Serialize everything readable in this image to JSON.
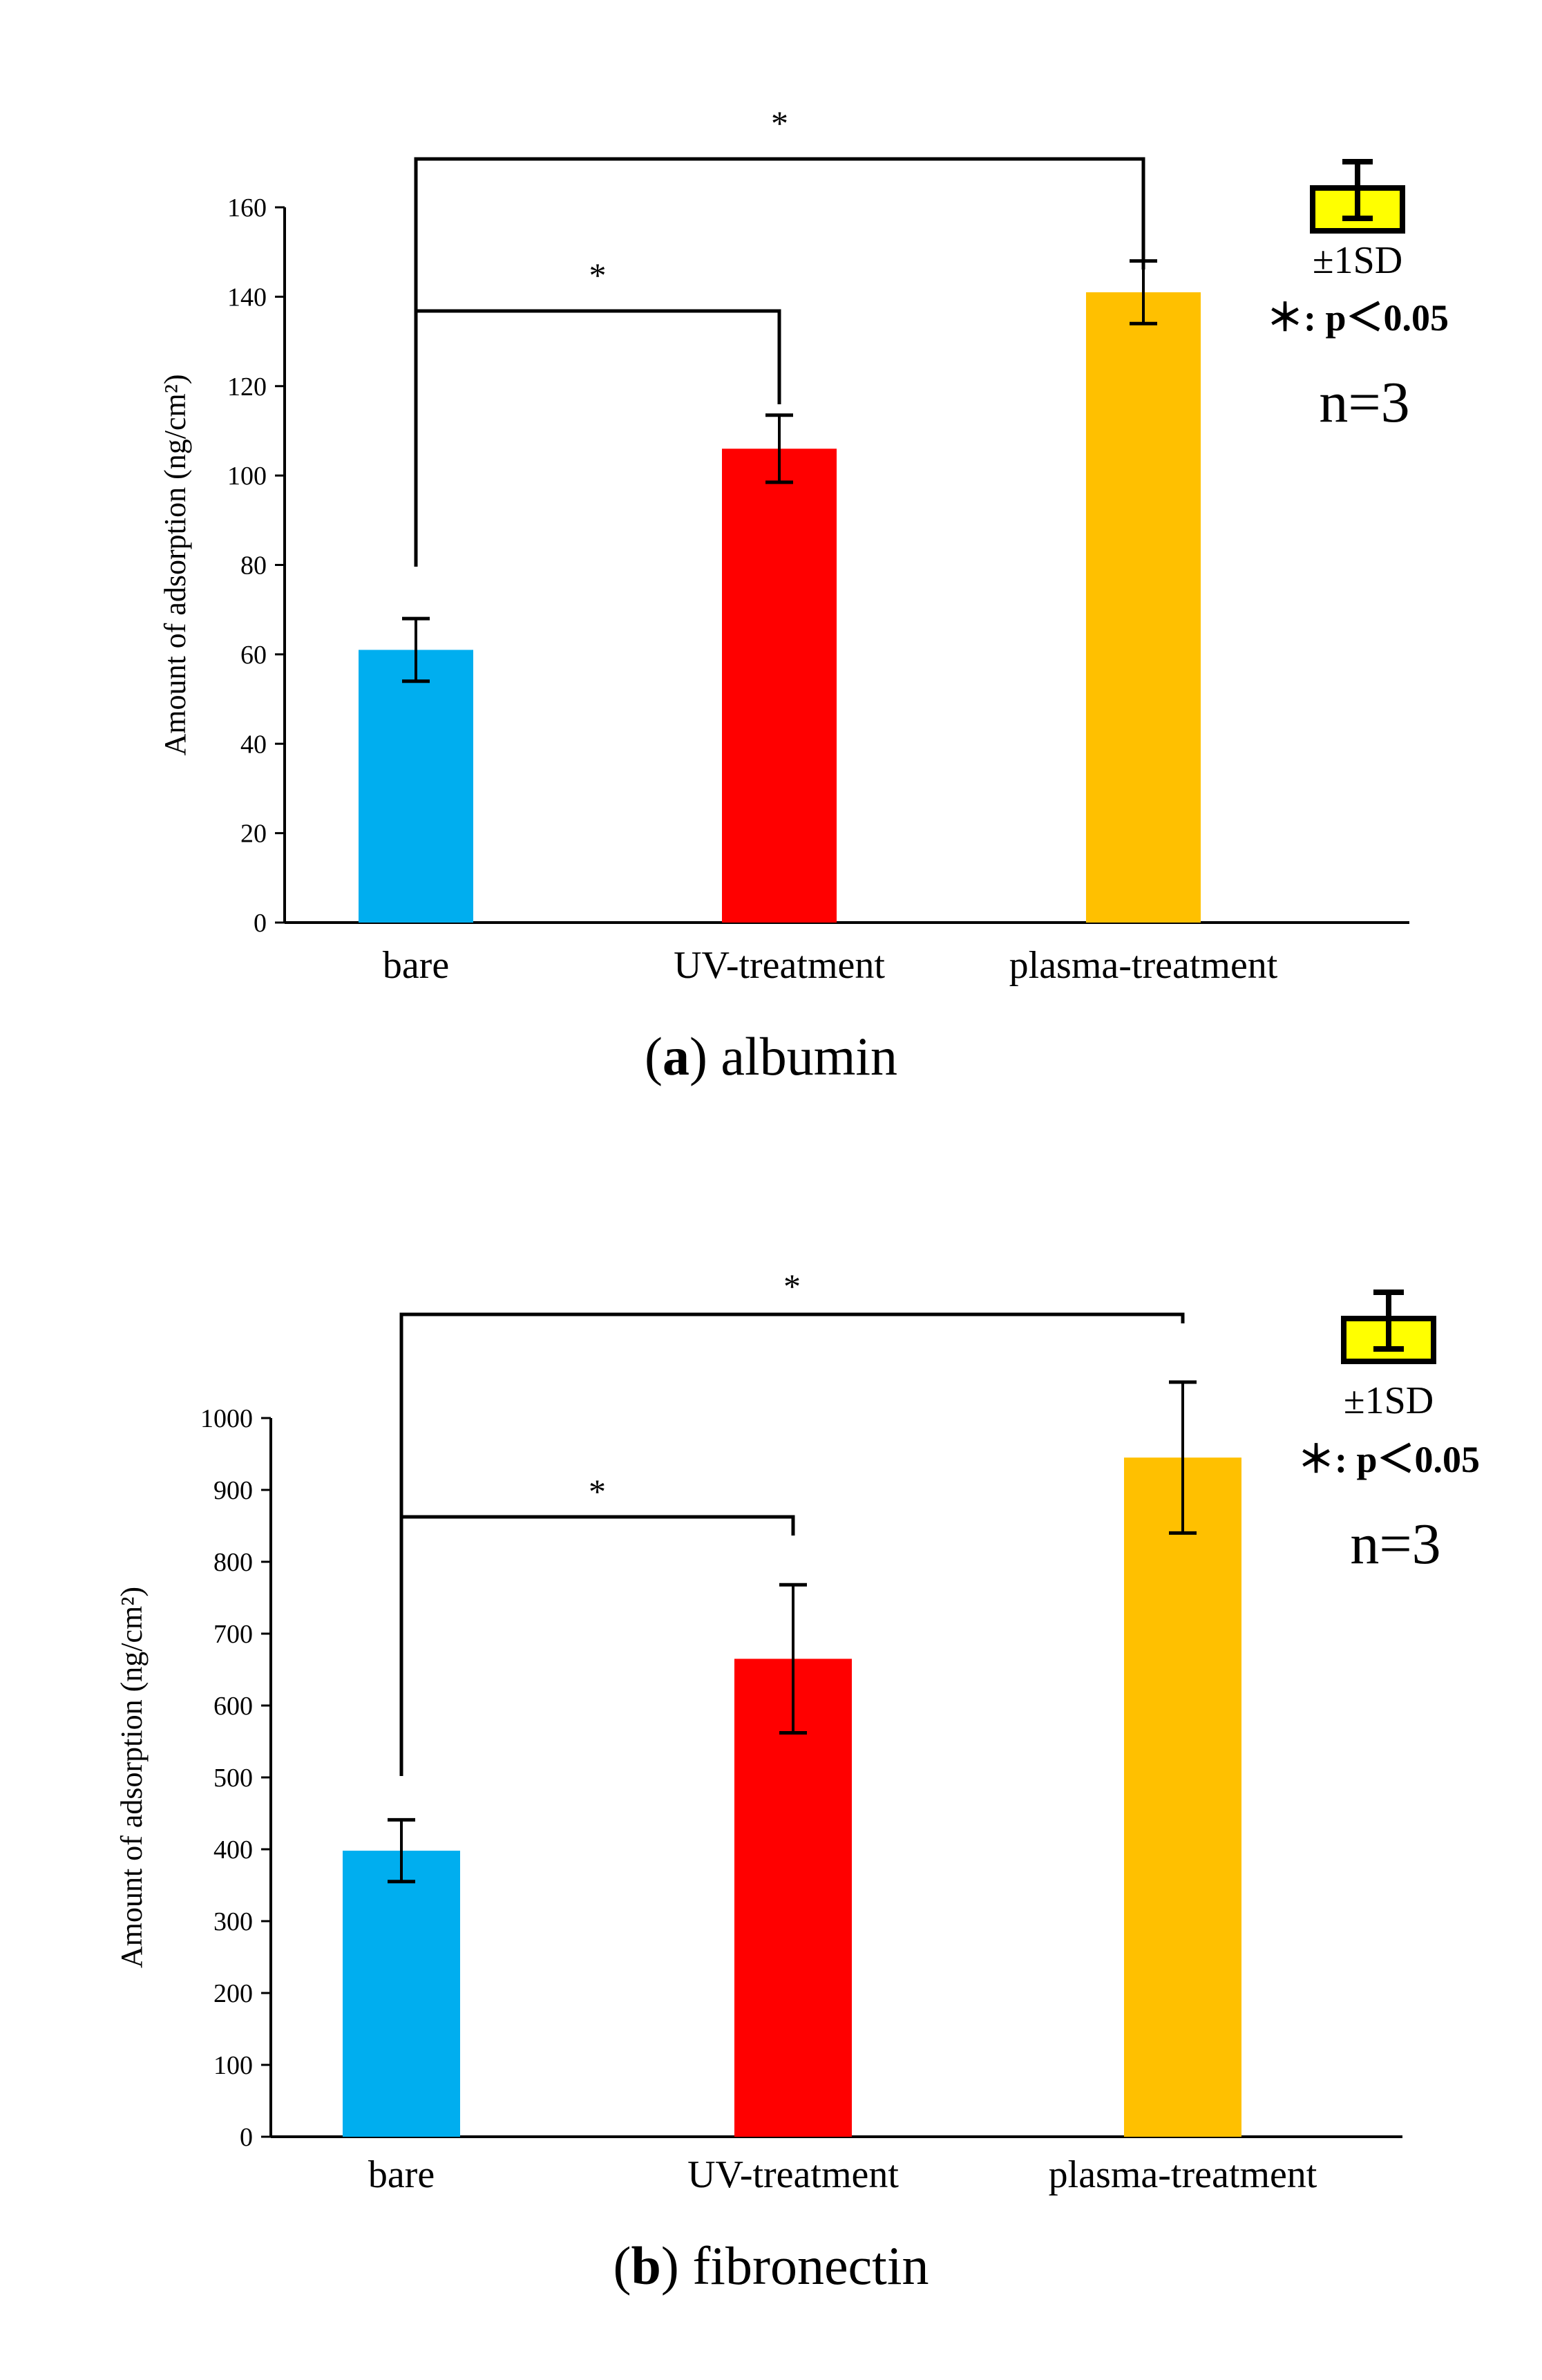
{
  "chart_data": [
    {
      "type": "bar",
      "caption_letter": "a",
      "caption_text": "albumin",
      "categories": [
        "bare",
        "UV-treatment",
        "plasma-treatment"
      ],
      "values": [
        61,
        106,
        141
      ],
      "errors": [
        7,
        7.5,
        7
      ],
      "colors": [
        "#00AEEF",
        "#FF0000",
        "#FFC000"
      ],
      "ylabel": "Amount of adsorption (ng/cm²)",
      "ylim": [
        0,
        160
      ],
      "yticks": [
        0,
        20,
        40,
        60,
        80,
        100,
        120,
        140,
        160
      ],
      "significance": [
        {
          "from": "bare",
          "to": "UV-treatment",
          "label": "*"
        },
        {
          "from": "bare",
          "to": "plasma-treatment",
          "label": "*"
        }
      ],
      "legend": {
        "sd": "±1SD",
        "p": "＊: p＜0.05",
        "n": "n=3"
      }
    },
    {
      "type": "bar",
      "caption_letter": "b",
      "caption_text": "fibronectin",
      "categories": [
        "bare",
        "UV-treatment",
        "plasma-treatment"
      ],
      "values": [
        398,
        665,
        945
      ],
      "errors": [
        43,
        103,
        105
      ],
      "colors": [
        "#00AEEF",
        "#FF0000",
        "#FFC000"
      ],
      "ylabel": "Amount of adsorption (ng/cm²)",
      "ylim": [
        0,
        1000
      ],
      "yticks": [
        0,
        100,
        200,
        300,
        400,
        500,
        600,
        700,
        800,
        900,
        1000
      ],
      "significance": [
        {
          "from": "bare",
          "to": "UV-treatment",
          "label": "*"
        },
        {
          "from": "bare",
          "to": "plasma-treatment",
          "label": "*"
        }
      ],
      "legend": {
        "sd": "±1SD",
        "p": "＊: p＜0.05",
        "n": "n=3"
      }
    }
  ]
}
